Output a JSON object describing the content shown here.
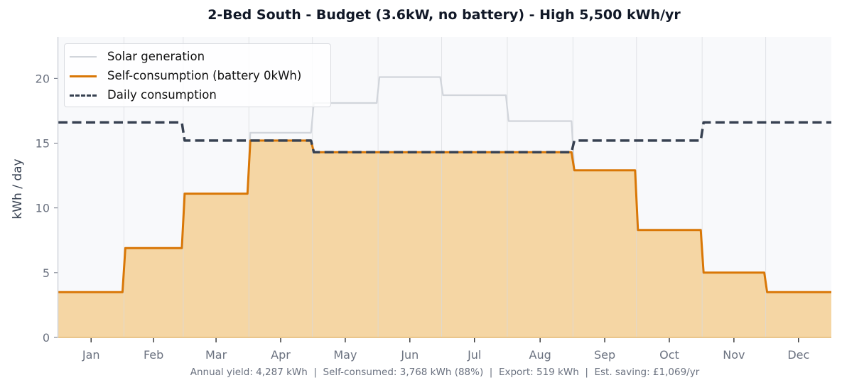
{
  "chart_data": {
    "type": "line",
    "title": "2-Bed South - Budget (3.6kW, no battery) - High 5,500 kWh/yr",
    "xlabel": "",
    "ylabel": "kWh / day",
    "ylim": [
      0,
      23.2
    ],
    "yticks": [
      0,
      5,
      10,
      15,
      20
    ],
    "grid": "vertical month boundaries",
    "legend_position": "upper left",
    "categories": [
      "Jan",
      "Feb",
      "Mar",
      "Apr",
      "May",
      "Jun",
      "Jul",
      "Aug",
      "Sep",
      "Oct",
      "Nov",
      "Dec"
    ],
    "series": [
      {
        "name": "Solar generation",
        "style": "step line",
        "color": "#d1d5db",
        "values": [
          3.5,
          6.9,
          11.1,
          15.8,
          18.1,
          20.1,
          18.7,
          16.7,
          12.9,
          8.3,
          5.0,
          3.5
        ]
      },
      {
        "name": "Self-consumption (battery 0kWh)",
        "style": "step line with filled area",
        "color": "#d97706",
        "fill": "#f5d6a4",
        "values": [
          3.5,
          6.9,
          11.1,
          15.2,
          14.3,
          14.3,
          14.3,
          14.3,
          12.9,
          8.3,
          5.0,
          3.5
        ]
      },
      {
        "name": "Daily consumption",
        "style": "dashed step line",
        "color": "#374151",
        "values": [
          16.6,
          16.6,
          15.2,
          15.2,
          14.3,
          14.3,
          14.3,
          14.3,
          15.2,
          15.2,
          16.6,
          16.6
        ]
      }
    ],
    "footnote": "Annual yield: 4,287 kWh  |  Self-consumed: 3,768 kWh (88%)  |  Export: 519 kWh  |  Est. saving: £1,069/yr"
  },
  "summary": {
    "annual_yield": "4,287 kWh",
    "self_consumed": "3,768 kWh (88%)",
    "export": "519 kWh",
    "est_saving": "£1,069/yr"
  },
  "colors": {
    "solar": "#d1d5db",
    "self_consumption": "#d97706",
    "self_consumption_fill": "#f5d6a4",
    "consumption": "#374151",
    "plot_bg": "#f8f9fb",
    "grid": "#e2e4e8",
    "tick_label": "#6b7280"
  }
}
